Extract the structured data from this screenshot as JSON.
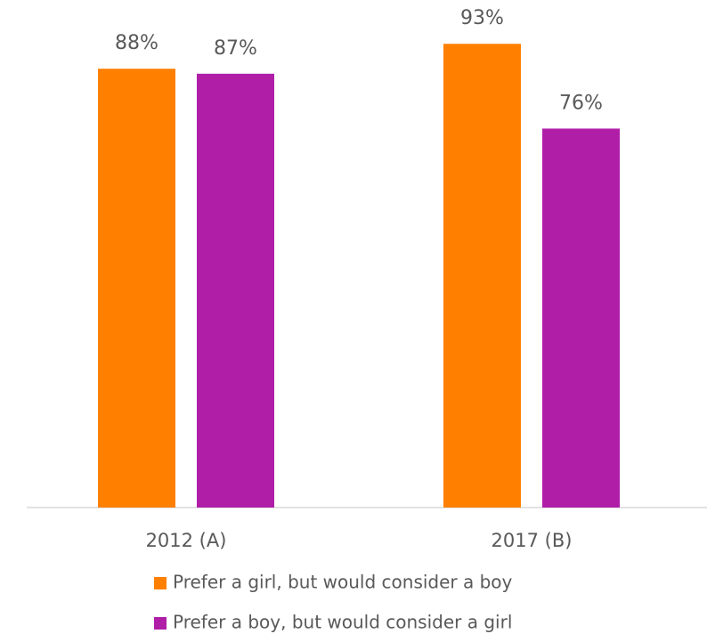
{
  "chart_data": {
    "type": "bar",
    "categories": [
      "2012 (A)",
      "2017 (B)"
    ],
    "series": [
      {
        "name": "Prefer a girl, but would consider a boy",
        "color": "#ff8000",
        "values": [
          88,
          93
        ],
        "value_labels": [
          "88%",
          "93%"
        ]
      },
      {
        "name": "Prefer a boy, but would consider a girl",
        "color": "#b01ea8",
        "values": [
          87,
          76
        ],
        "value_labels": [
          "87%",
          "76%"
        ]
      }
    ],
    "ylim": [
      0,
      100
    ],
    "legend": "bottom"
  }
}
